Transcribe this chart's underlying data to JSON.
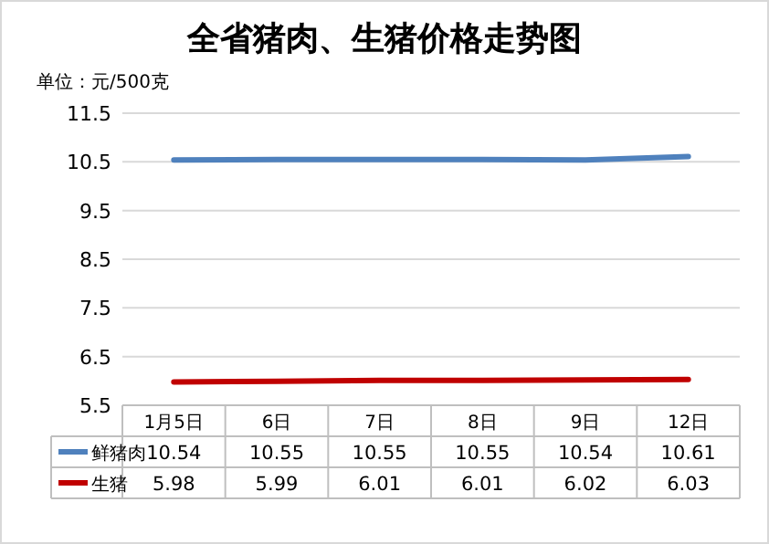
{
  "chart_data": {
    "type": "line",
    "title": "全省猪肉、生猪价格走势图",
    "ylabel": "单位：元/500克",
    "categories": [
      "1月5日",
      "6日",
      "7日",
      "8日",
      "9日",
      "12日"
    ],
    "series": [
      {
        "name": "鲜猪肉",
        "color": "#4f81bd",
        "values": [
          10.54,
          10.55,
          10.55,
          10.55,
          10.54,
          10.61
        ]
      },
      {
        "name": "生猪",
        "color": "#c00000",
        "values": [
          5.98,
          5.99,
          6.01,
          6.01,
          6.02,
          6.03
        ]
      }
    ],
    "ylim": [
      5.5,
      11.5
    ],
    "yticks": [
      5.5,
      6.5,
      7.5,
      8.5,
      9.5,
      10.5,
      11.5
    ],
    "grid": "y",
    "data_labels": true,
    "legend": "bottom",
    "marker": "none",
    "line_style": "solid"
  }
}
